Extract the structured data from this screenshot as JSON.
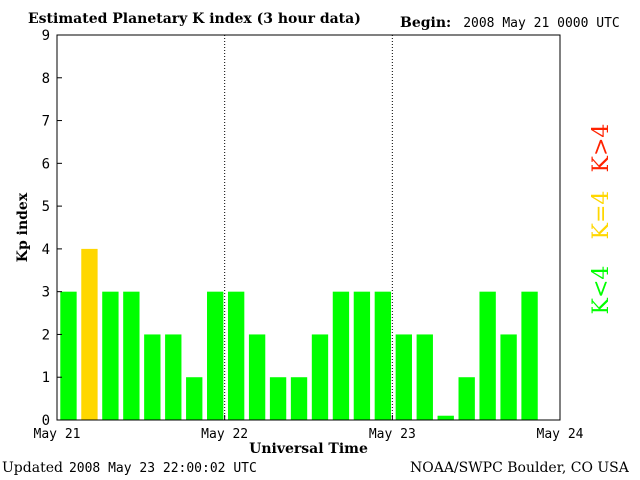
{
  "header": {
    "title": "Estimated Planetary K index (3 hour data)",
    "begin_label": "Begin:",
    "begin_value": "2008 May 21 0000 UTC"
  },
  "footer": {
    "updated_label": "Updated",
    "updated_value": "2008 May 23 22:00:02 UTC",
    "source": "NOAA/SWPC Boulder, CO USA"
  },
  "colors": {
    "low": "#00ff00",
    "moderate": "#ffd700",
    "storm": "#ff2200"
  },
  "legend": [
    {
      "label": "K<4",
      "color": "#00ff00"
    },
    {
      "label": "K=4",
      "color": "#ffd700"
    },
    {
      "label": "K>4",
      "color": "#ff2200"
    }
  ],
  "chart_data": {
    "type": "bar",
    "title": "Estimated Planetary K index (3 hour data)",
    "xlabel": "Universal Time",
    "ylabel": "Kp index",
    "ylim": [
      0,
      9
    ],
    "yticks": [
      0,
      1,
      2,
      3,
      4,
      5,
      6,
      7,
      8,
      9
    ],
    "xticks": [
      "May 21",
      "May 22",
      "May 23",
      "May 24"
    ],
    "bars_per_day": 8,
    "grid": "vertical dotted day separators",
    "legend_placement": "right",
    "values": [
      3,
      4,
      3,
      3,
      2,
      2,
      1,
      3,
      3,
      2,
      1,
      1,
      2,
      3,
      3,
      3,
      2,
      2,
      0.1,
      1,
      3,
      2,
      3
    ]
  }
}
